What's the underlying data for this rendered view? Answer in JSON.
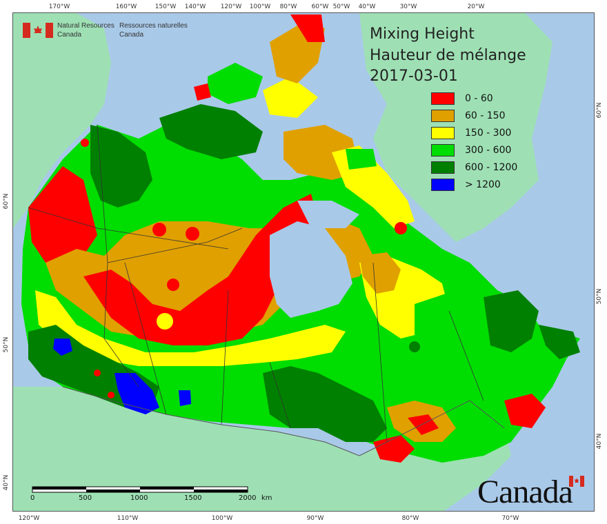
{
  "title": {
    "line1": "Mixing Height",
    "line2": "Hauteur de mélange",
    "date": "2017-03-01"
  },
  "legend": [
    {
      "label": "0 - 60",
      "color": "#ff0000"
    },
    {
      "label": "60 - 150",
      "color": "#e0a000"
    },
    {
      "label": "150 - 300",
      "color": "#ffff00"
    },
    {
      "label": "300 - 600",
      "color": "#00dd00"
    },
    {
      "label": "600 - 1200",
      "color": "#008000"
    },
    {
      "label": "> 1200",
      "color": "#0000ff"
    }
  ],
  "agency": {
    "en_line1": "Natural Resources",
    "en_line2": "Canada",
    "fr_line1": "Ressources naturelles",
    "fr_line2": "Canada"
  },
  "wordmark": "Canada",
  "top_labels": [
    "170°W",
    "160°W",
    "150°W",
    "140°W",
    "120°W",
    "100°W",
    "80°W",
    "60°W",
    "50°W",
    "40°W",
    "30°W",
    "20°W"
  ],
  "bottom_labels": [
    "120°W",
    "110°W",
    "100°W",
    "90°W",
    "80°W",
    "70°W"
  ],
  "left_labels": [
    "60°N",
    "50°N",
    "40°N"
  ],
  "right_labels": [
    "60°N",
    "50°N",
    "40°N"
  ],
  "scale": {
    "ticks": [
      "0",
      "500",
      "1000",
      "1500",
      "2000"
    ],
    "unit": "km"
  },
  "colors": {
    "ocean": "#a9c9e8",
    "land_outside": "#9ee0b4",
    "border": "#333333"
  }
}
